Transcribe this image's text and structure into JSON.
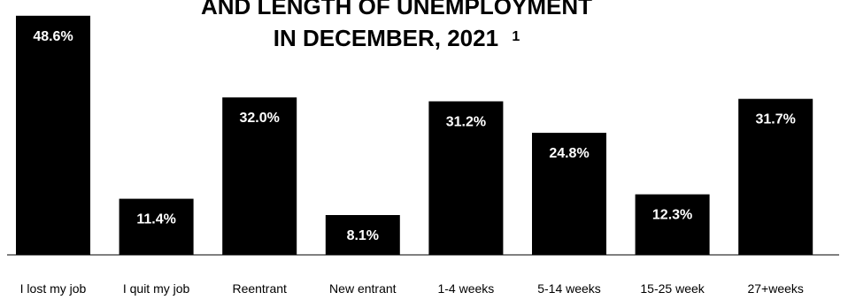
{
  "chart_data": {
    "type": "bar",
    "title_lines": [
      "AND LENGTH OF UNEMPLOYMENT",
      "IN DECEMBER, 2021"
    ],
    "title_footnote": "1",
    "categories": [
      "I lost my job",
      "I quit my job",
      "Reentrant",
      "New entrant",
      "1-4 weeks",
      "5-14 weeks",
      "15-25 week",
      "27+weeks"
    ],
    "values": [
      48.6,
      11.4,
      32.0,
      8.1,
      31.2,
      24.8,
      12.3,
      31.7
    ],
    "value_labels": [
      "48.6%",
      "11.4%",
      "32.0%",
      "8.1%",
      "31.2%",
      "24.8%",
      "12.3%",
      "31.7%"
    ],
    "ylim": [
      0,
      50
    ],
    "grid": false,
    "legend": "none",
    "colors": {
      "bar": "#000000",
      "value_label": "#ffffff",
      "text": "#000000",
      "baseline": "#000000"
    }
  }
}
